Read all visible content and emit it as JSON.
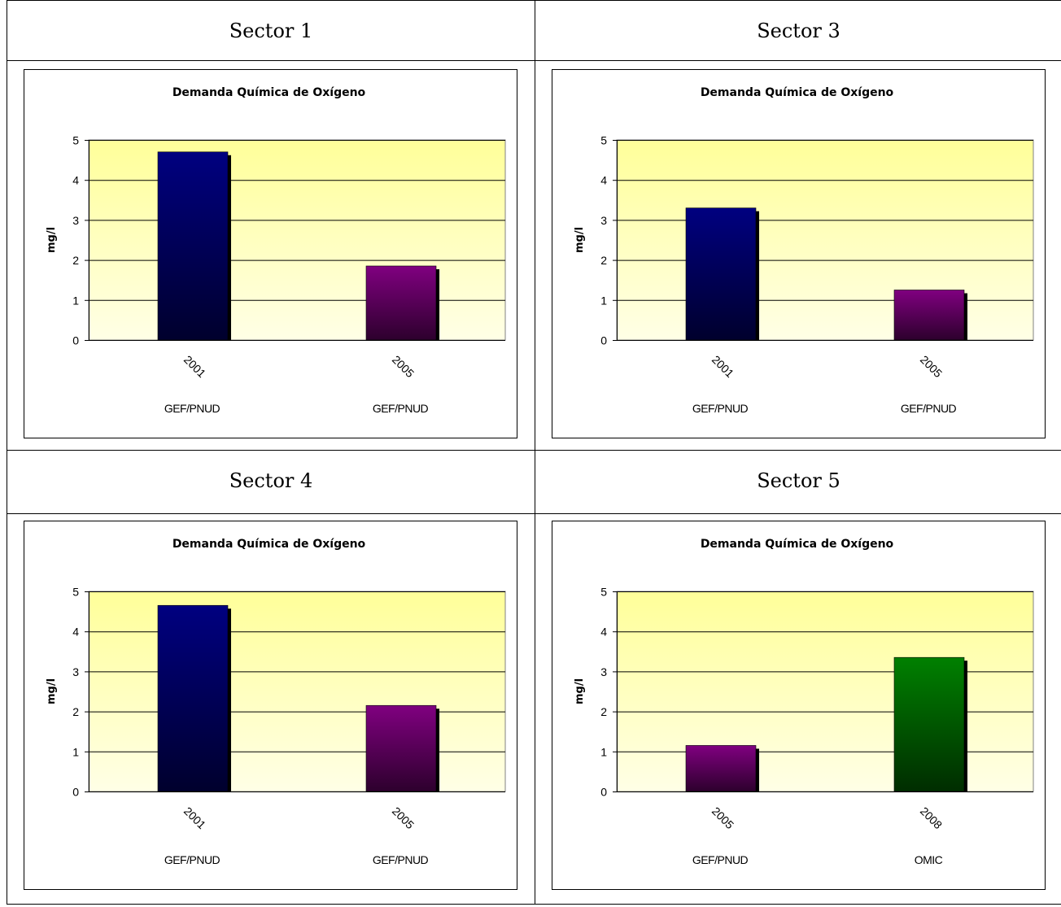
{
  "sectors": [
    {
      "heading": "Sector 1",
      "chart_title": "Demanda Química de Oxígeno",
      "ylabel": "mg/l",
      "yticks": [
        "0",
        "1",
        "2",
        "3",
        "4",
        "5"
      ],
      "years": [
        "2001",
        "2005"
      ],
      "sources": [
        "GEF/PNUD",
        "GEF/PNUD"
      ]
    },
    {
      "heading": "Sector 3",
      "chart_title": "Demanda Química de Oxígeno",
      "ylabel": "mg/l",
      "yticks": [
        "0",
        "1",
        "2",
        "3",
        "4",
        "5"
      ],
      "years": [
        "2001",
        "2005"
      ],
      "sources": [
        "GEF/PNUD",
        "GEF/PNUD"
      ]
    },
    {
      "heading": "Sector 4",
      "chart_title": "Demanda Química de Oxígeno",
      "ylabel": "mg/l",
      "yticks": [
        "0",
        "1",
        "2",
        "3",
        "4",
        "5"
      ],
      "years": [
        "2001",
        "2005"
      ],
      "sources": [
        "GEF/PNUD",
        "GEF/PNUD"
      ]
    },
    {
      "heading": "Sector 5",
      "chart_title": "Demanda Química de Oxígeno",
      "ylabel": "mg/l",
      "yticks": [
        "0",
        "1",
        "2",
        "3",
        "4",
        "5"
      ],
      "years": [
        "2005",
        "2008"
      ],
      "sources": [
        "GEF/PNUD",
        "OMIC"
      ]
    }
  ],
  "chart_data": [
    {
      "type": "bar",
      "title": "Demanda Química de Oxígeno",
      "ylabel": "mg/l",
      "ylim": [
        0,
        5
      ],
      "grid": true,
      "categories": [
        "2001 GEF/PNUD",
        "2005 GEF/PNUD"
      ],
      "values": [
        4.7,
        1.85
      ],
      "colors": [
        "#000080",
        "#800080"
      ]
    },
    {
      "type": "bar",
      "title": "Demanda Química de Oxígeno",
      "ylabel": "mg/l",
      "ylim": [
        0,
        5
      ],
      "grid": true,
      "categories": [
        "2001 GEF/PNUD",
        "2005 GEF/PNUD"
      ],
      "values": [
        3.3,
        1.25
      ],
      "colors": [
        "#000080",
        "#800080"
      ]
    },
    {
      "type": "bar",
      "title": "Demanda Química de Oxígeno",
      "ylabel": "mg/l",
      "ylim": [
        0,
        5
      ],
      "grid": true,
      "categories": [
        "2001 GEF/PNUD",
        "2005 GEF/PNUD"
      ],
      "values": [
        4.65,
        2.15
      ],
      "colors": [
        "#000080",
        "#800080"
      ]
    },
    {
      "type": "bar",
      "title": "Demanda Química de Oxígeno",
      "ylabel": "mg/l",
      "ylim": [
        0,
        5
      ],
      "grid": true,
      "categories": [
        "2005 GEF/PNUD",
        "2008 OMIC"
      ],
      "values": [
        1.15,
        3.35
      ],
      "colors": [
        "#800080",
        "#008000"
      ]
    }
  ]
}
